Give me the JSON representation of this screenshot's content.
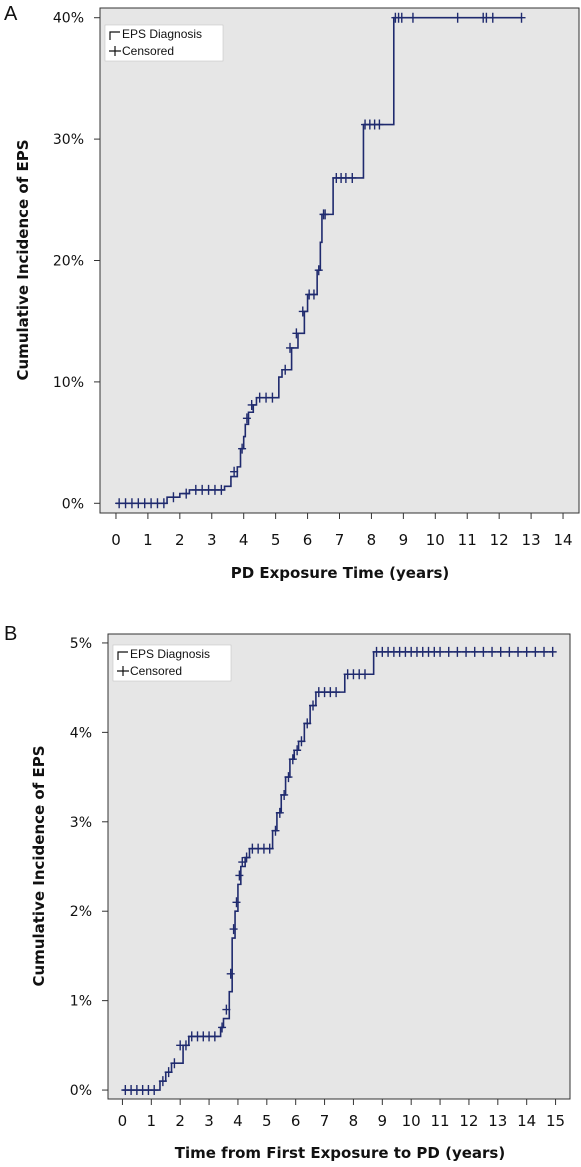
{
  "chart_data": [
    {
      "panel": "A",
      "type": "line",
      "title": "",
      "xlabel": "PD Exposure Time (years)",
      "ylabel": "Cumulative Incidence of EPS",
      "x_ticks": [
        "0",
        "1",
        "2",
        "3",
        "4",
        "5",
        "6",
        "7",
        "8",
        "9",
        "10",
        "11",
        "12",
        "13",
        "14"
      ],
      "xlim": [
        -0.5,
        14.5
      ],
      "y_ticks": [
        "0%",
        "10%",
        "20%",
        "30%",
        "40%"
      ],
      "ylim": [
        -0.8,
        40.8
      ],
      "legend": [
        "EPS Diagnosis",
        "Censored"
      ],
      "legend_position": "top-left",
      "line_color": "#1f2a6e",
      "plot_background": "#e6e6e6",
      "series": [
        {
          "name": "EPS Diagnosis",
          "step_x": [
            0,
            1.6,
            2.0,
            2.3,
            3.4,
            3.6,
            3.8,
            3.9,
            4.0,
            4.05,
            4.15,
            4.3,
            4.4,
            5.1,
            5.2,
            5.5,
            5.7,
            5.9,
            6.0,
            6.15,
            6.3,
            6.4,
            6.45,
            6.6,
            6.8,
            7.6,
            7.75,
            8.6,
            8.7
          ],
          "step_y": [
            0,
            0.5,
            0.8,
            1.1,
            1.4,
            2.2,
            3.0,
            4.5,
            5.5,
            6.5,
            7.5,
            8.1,
            8.7,
            10.4,
            11.0,
            12.8,
            14.0,
            15.8,
            17.2,
            17.2,
            19.2,
            21.5,
            23.8,
            23.8,
            26.8,
            26.8,
            31.2,
            31.2,
            40.0
          ],
          "censored_x": [
            0.1,
            0.3,
            0.5,
            0.7,
            0.9,
            1.1,
            1.3,
            1.5,
            1.8,
            2.2,
            2.5,
            2.7,
            2.9,
            3.1,
            3.3,
            3.7,
            3.95,
            4.1,
            4.25,
            4.5,
            4.7,
            4.9,
            5.3,
            5.45,
            5.65,
            5.85,
            6.05,
            6.2,
            6.35,
            6.5,
            6.55,
            6.9,
            7.05,
            7.2,
            7.4,
            7.8,
            7.95,
            8.1,
            8.25,
            8.75,
            8.85,
            8.95,
            9.3,
            10.7,
            11.5,
            11.6,
            11.8,
            12.7
          ],
          "censored_y": [
            0,
            0,
            0,
            0,
            0,
            0,
            0,
            0,
            0.5,
            0.8,
            1.1,
            1.1,
            1.1,
            1.1,
            1.1,
            2.6,
            4.5,
            7.0,
            8.1,
            8.7,
            8.7,
            8.7,
            11.0,
            12.8,
            14.0,
            15.8,
            17.2,
            17.2,
            19.2,
            23.8,
            23.8,
            26.8,
            26.8,
            26.8,
            26.8,
            31.2,
            31.2,
            31.2,
            31.2,
            40,
            40,
            40,
            40,
            40,
            40,
            40,
            40,
            40
          ]
        }
      ]
    },
    {
      "panel": "B",
      "type": "line",
      "title": "",
      "xlabel": "Time from First Exposure to PD (years)",
      "ylabel": "Cumulative Incidence of EPS",
      "x_ticks": [
        "0",
        "1",
        "2",
        "3",
        "4",
        "5",
        "6",
        "7",
        "8",
        "9",
        "10",
        "11",
        "12",
        "13",
        "14",
        "15"
      ],
      "xlim": [
        -0.5,
        15.5
      ],
      "y_ticks": [
        "0%",
        "1%",
        "2%",
        "3%",
        "4%",
        "5%"
      ],
      "ylim": [
        -0.1,
        5.1
      ],
      "legend": [
        "EPS Diagnosis",
        "Censored"
      ],
      "legend_position": "top-left",
      "line_color": "#1f2a6e",
      "plot_background": "#e6e6e6",
      "series": [
        {
          "name": "EPS Diagnosis",
          "step_x": [
            0,
            1.3,
            1.5,
            1.7,
            2.1,
            2.3,
            3.4,
            3.5,
            3.7,
            3.8,
            3.9,
            4.0,
            4.1,
            4.25,
            4.4,
            5.2,
            5.35,
            5.5,
            5.65,
            5.8,
            5.95,
            6.1,
            6.3,
            6.5,
            6.7,
            7.5,
            7.7,
            8.6,
            8.7
          ],
          "step_y": [
            0,
            0.1,
            0.2,
            0.3,
            0.5,
            0.6,
            0.7,
            0.8,
            1.1,
            1.7,
            2.0,
            2.3,
            2.5,
            2.6,
            2.7,
            2.9,
            3.1,
            3.3,
            3.5,
            3.7,
            3.8,
            3.9,
            4.1,
            4.3,
            4.45,
            4.45,
            4.65,
            4.65,
            4.9
          ],
          "censored_x": [
            0.1,
            0.3,
            0.5,
            0.7,
            0.9,
            1.1,
            1.4,
            1.6,
            1.8,
            2.0,
            2.2,
            2.4,
            2.6,
            2.8,
            3.0,
            3.2,
            3.45,
            3.6,
            3.75,
            3.85,
            3.95,
            4.05,
            4.15,
            4.3,
            4.5,
            4.7,
            4.9,
            5.1,
            5.3,
            5.45,
            5.6,
            5.75,
            5.9,
            6.05,
            6.2,
            6.4,
            6.6,
            6.8,
            7.0,
            7.2,
            7.4,
            7.8,
            8.0,
            8.2,
            8.4,
            8.8,
            9.0,
            9.2,
            9.4,
            9.6,
            9.8,
            10.0,
            10.2,
            10.4,
            10.6,
            10.8,
            11.0,
            11.3,
            11.6,
            11.9,
            12.2,
            12.5,
            12.8,
            13.1,
            13.4,
            13.7,
            14.0,
            14.3,
            14.6,
            14.9
          ],
          "censored_y": [
            0,
            0,
            0,
            0,
            0,
            0,
            0.1,
            0.2,
            0.3,
            0.5,
            0.5,
            0.6,
            0.6,
            0.6,
            0.6,
            0.6,
            0.7,
            0.9,
            1.3,
            1.8,
            2.1,
            2.4,
            2.55,
            2.6,
            2.7,
            2.7,
            2.7,
            2.7,
            2.9,
            3.1,
            3.3,
            3.5,
            3.7,
            3.8,
            3.9,
            4.1,
            4.3,
            4.45,
            4.45,
            4.45,
            4.45,
            4.65,
            4.65,
            4.65,
            4.65,
            4.9,
            4.9,
            4.9,
            4.9,
            4.9,
            4.9,
            4.9,
            4.9,
            4.9,
            4.9,
            4.9,
            4.9,
            4.9,
            4.9,
            4.9,
            4.9,
            4.9,
            4.9,
            4.9,
            4.9,
            4.9,
            4.9,
            4.9,
            4.9,
            4.9
          ]
        }
      ]
    }
  ],
  "panels": [
    {
      "letter": "A",
      "legend_line": "EPS Diagnosis",
      "legend_censored": "Censored",
      "xlabel": "PD Exposure Time (years)",
      "ylabel": "Cumulative Incidence of EPS"
    },
    {
      "letter": "B",
      "legend_line": "EPS Diagnosis",
      "legend_censored": "Censored",
      "xlabel": "Time from First Exposure to PD (years)",
      "ylabel": "Cumulative Incidence of EPS"
    }
  ]
}
